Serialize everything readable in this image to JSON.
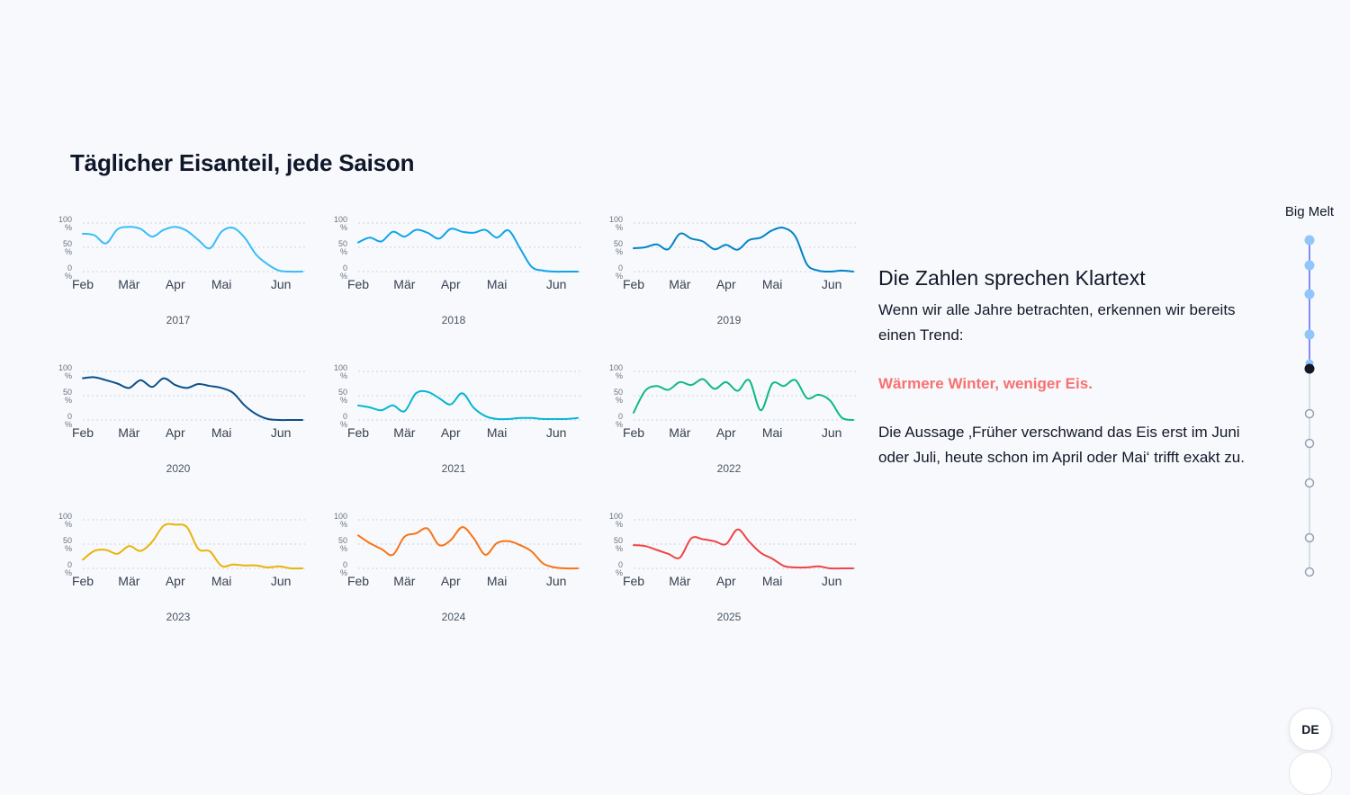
{
  "page": {
    "title": "Täglicher Eisanteil, jede Saison"
  },
  "story": {
    "heading": "Die Zahlen sprechen Klartext",
    "paragraph1": "Wenn wir alle Jahre betrachten, erkennen wir bereits einen Trend:",
    "highlight": "Wärmere Winter, weniger Eis.",
    "paragraph2": "Die Aussage ‚Früher verschwand das Eis erst im Juni oder Juli, heute schon im April oder Mai‘ trifft exakt zu.",
    "highlight_color": "#f87171"
  },
  "nav": {
    "label": "Big Melt",
    "steps": 10,
    "active_index": 4,
    "filled_color": "#93c5fd",
    "active_color": "#111827"
  },
  "lang_button": "DE",
  "chart_data": {
    "type": "line",
    "y_axis": {
      "ticks": [
        "100 %",
        "50 %",
        "0 %"
      ],
      "ylim": [
        0,
        100
      ]
    },
    "x_ticks": [
      "Feb",
      "Mär",
      "Apr",
      "Mai",
      "Jun"
    ],
    "grid": true,
    "x_dates": [
      "Feb 1",
      "Feb 15",
      "Mär 1",
      "Mär 15",
      "Apr 1",
      "Apr 15",
      "Mai 1",
      "Mai 15",
      "Jun 1"
    ],
    "panels": [
      {
        "year": "2017",
        "color": "#38bdf8",
        "x": [
          0,
          7,
          14,
          21,
          28,
          35,
          42,
          49,
          56,
          63,
          70,
          77,
          84,
          91,
          98,
          105,
          112,
          119,
          126,
          133
        ],
        "values": [
          78,
          75,
          58,
          87,
          92,
          88,
          72,
          86,
          92,
          84,
          65,
          48,
          82,
          90,
          70,
          35,
          15,
          2,
          0,
          0
        ]
      },
      {
        "year": "2018",
        "color": "#0ea5e9",
        "x": [
          0,
          7,
          14,
          21,
          28,
          35,
          42,
          49,
          56,
          63,
          70,
          77,
          84,
          91,
          98,
          105,
          112,
          119,
          126,
          133
        ],
        "values": [
          60,
          70,
          62,
          82,
          72,
          86,
          80,
          68,
          88,
          82,
          80,
          86,
          70,
          85,
          48,
          10,
          2,
          0,
          0,
          0
        ]
      },
      {
        "year": "2019",
        "color": "#0284c7",
        "x": [
          0,
          7,
          14,
          21,
          28,
          35,
          42,
          49,
          56,
          63,
          70,
          77,
          84,
          91,
          98,
          105,
          112,
          119,
          126,
          133
        ],
        "values": [
          48,
          50,
          56,
          46,
          78,
          68,
          62,
          46,
          55,
          45,
          65,
          70,
          85,
          90,
          72,
          15,
          2,
          0,
          2,
          0
        ]
      },
      {
        "year": "2020",
        "color": "#0b4f8a",
        "x": [
          0,
          7,
          14,
          21,
          28,
          35,
          42,
          49,
          56,
          63,
          70,
          77,
          84,
          91,
          98,
          105,
          112,
          119,
          126,
          133
        ],
        "values": [
          86,
          88,
          82,
          75,
          66,
          82,
          68,
          86,
          72,
          66,
          74,
          70,
          66,
          56,
          30,
          12,
          2,
          0,
          0,
          0
        ]
      },
      {
        "year": "2021",
        "color": "#06b6d4",
        "x": [
          0,
          7,
          14,
          21,
          28,
          35,
          42,
          49,
          56,
          63,
          70,
          77,
          84,
          91,
          98,
          105,
          112,
          119,
          126,
          133
        ],
        "values": [
          30,
          26,
          20,
          30,
          18,
          55,
          58,
          45,
          32,
          55,
          25,
          8,
          2,
          2,
          4,
          4,
          2,
          2,
          2,
          4
        ]
      },
      {
        "year": "2022",
        "color": "#10b981",
        "x": [
          0,
          7,
          14,
          21,
          28,
          35,
          42,
          49,
          56,
          63,
          70,
          77,
          84,
          91,
          98,
          105,
          112,
          119,
          126,
          133
        ],
        "values": [
          15,
          60,
          70,
          62,
          78,
          72,
          84,
          64,
          78,
          60,
          82,
          20,
          75,
          70,
          82,
          45,
          52,
          40,
          5,
          0
        ]
      },
      {
        "year": "2023",
        "color": "#eab308",
        "x": [
          0,
          7,
          14,
          21,
          28,
          35,
          42,
          49,
          56,
          63,
          70,
          77,
          84,
          91,
          98,
          105,
          112,
          119,
          126,
          133
        ],
        "values": [
          18,
          36,
          38,
          30,
          46,
          36,
          55,
          88,
          90,
          85,
          40,
          35,
          5,
          8,
          6,
          6,
          2,
          4,
          0,
          0
        ]
      },
      {
        "year": "2024",
        "color": "#f97316",
        "x": [
          0,
          7,
          14,
          21,
          28,
          35,
          42,
          49,
          56,
          63,
          70,
          77,
          84,
          91,
          98,
          105,
          112,
          119,
          126,
          133
        ],
        "values": [
          68,
          52,
          40,
          28,
          65,
          72,
          82,
          48,
          58,
          85,
          62,
          28,
          52,
          56,
          48,
          35,
          10,
          2,
          0,
          0
        ]
      },
      {
        "year": "2025",
        "color": "#ef4444",
        "x": [
          0,
          7,
          14,
          21,
          28,
          35,
          42,
          49,
          56,
          63,
          70,
          77,
          84,
          91,
          98,
          105,
          112,
          119,
          126,
          133
        ],
        "values": [
          48,
          46,
          38,
          30,
          22,
          62,
          60,
          56,
          50,
          80,
          55,
          32,
          20,
          5,
          2,
          2,
          4,
          0,
          0,
          0
        ]
      }
    ]
  }
}
